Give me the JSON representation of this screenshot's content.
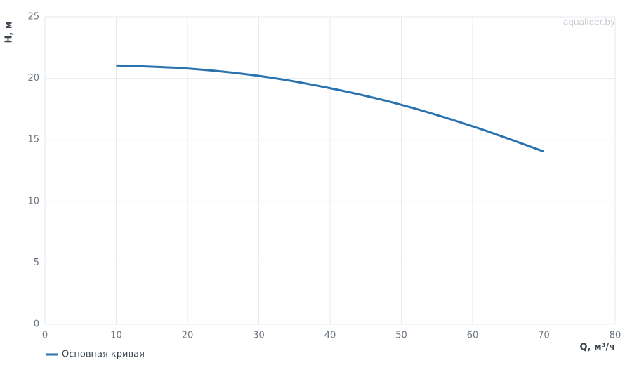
{
  "chart_data": {
    "type": "line",
    "watermark": "aqualider.by",
    "x_label": "Q, м³/ч",
    "y_label": "H, м",
    "x": [
      10,
      20,
      30,
      40,
      50,
      60,
      70
    ],
    "series": [
      {
        "name": "Основная кривая",
        "color": "#2a73b0",
        "values": [
          21.05,
          20.8,
          20.2,
          19.2,
          17.85,
          16.1,
          14.05
        ]
      }
    ],
    "xlim": [
      0,
      80
    ],
    "xticks": [
      0,
      10,
      20,
      30,
      40,
      50,
      60,
      70,
      80
    ],
    "ylim": [
      0,
      25
    ],
    "yticks": [
      0,
      5,
      10,
      15,
      20,
      25
    ],
    "grid": true,
    "legend": "bottom-left"
  }
}
